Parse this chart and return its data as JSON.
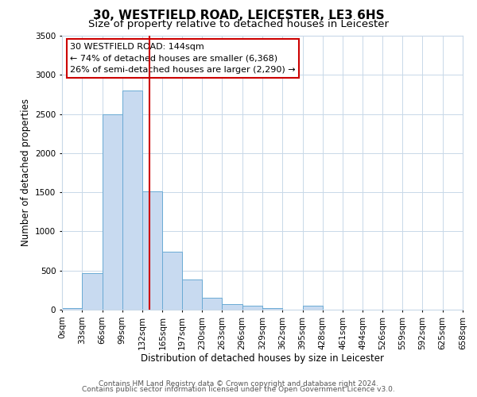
{
  "title": "30, WESTFIELD ROAD, LEICESTER, LE3 6HS",
  "subtitle": "Size of property relative to detached houses in Leicester",
  "xlabel": "Distribution of detached houses by size in Leicester",
  "ylabel": "Number of detached properties",
  "bar_edges": [
    0,
    33,
    66,
    99,
    132,
    165,
    197,
    230,
    263,
    296,
    329,
    362,
    395,
    428,
    461,
    494,
    526,
    559,
    592,
    625,
    658
  ],
  "bar_heights": [
    25,
    470,
    2500,
    2800,
    1510,
    740,
    390,
    150,
    75,
    55,
    20,
    0,
    55,
    0,
    0,
    0,
    0,
    0,
    0,
    0
  ],
  "bar_color": "#c8daf0",
  "bar_edge_color": "#6aaad4",
  "vline_x": 144,
  "vline_color": "#cc0000",
  "annotation_box_text": "30 WESTFIELD ROAD: 144sqm\n← 74% of detached houses are smaller (6,368)\n26% of semi-detached houses are larger (2,290) →",
  "annotation_box_edgecolor": "#cc0000",
  "annotation_box_facecolor": "#ffffff",
  "ylim": [
    0,
    3500
  ],
  "yticks": [
    0,
    500,
    1000,
    1500,
    2000,
    2500,
    3000,
    3500
  ],
  "tick_labels": [
    "0sqm",
    "33sqm",
    "66sqm",
    "99sqm",
    "132sqm",
    "165sqm",
    "197sqm",
    "230sqm",
    "263sqm",
    "296sqm",
    "329sqm",
    "362sqm",
    "395sqm",
    "428sqm",
    "461sqm",
    "494sqm",
    "526sqm",
    "559sqm",
    "592sqm",
    "625sqm",
    "658sqm"
  ],
  "footer_line1": "Contains HM Land Registry data © Crown copyright and database right 2024.",
  "footer_line2": "Contains public sector information licensed under the Open Government Licence v3.0.",
  "background_color": "#ffffff",
  "grid_color": "#c8d8e8",
  "title_fontsize": 11,
  "subtitle_fontsize": 9.5,
  "axis_label_fontsize": 8.5,
  "tick_fontsize": 7.5,
  "annot_fontsize": 8,
  "footer_fontsize": 6.5
}
